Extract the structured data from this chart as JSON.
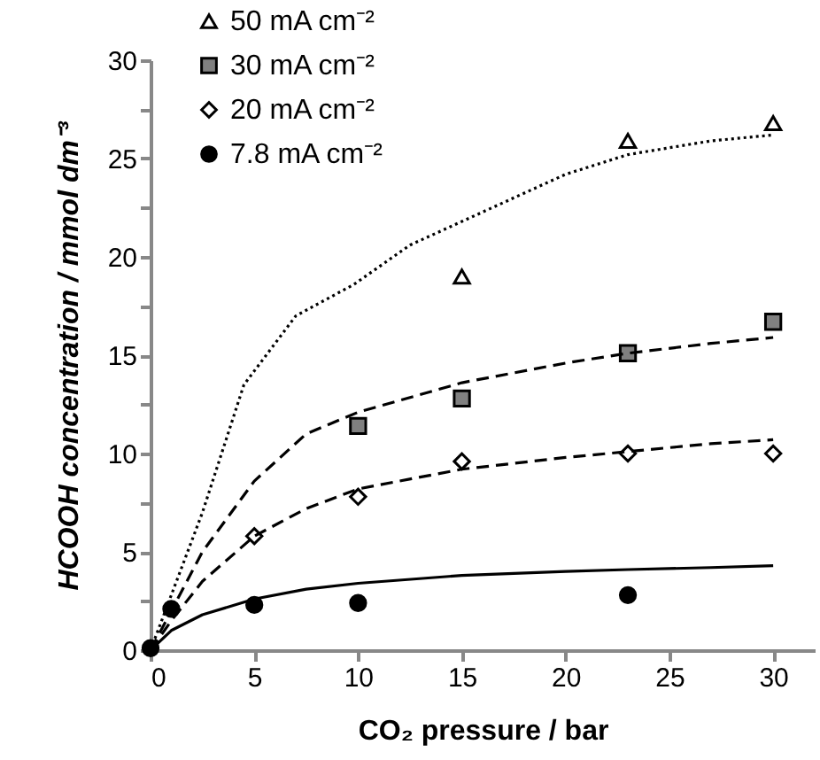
{
  "chart_data": {
    "type": "scatter",
    "xlabel": "CO₂ pressure / bar",
    "ylabel": "HCOOH concentration / mmol dm⁻³",
    "xlim": [
      0,
      32
    ],
    "xticks": [
      0,
      5,
      10,
      15,
      20,
      25,
      30
    ],
    "ylim": [
      0,
      30
    ],
    "yticks": [
      0,
      {
        "value": 2.5,
        "label": null
      },
      5,
      {
        "value": 7.5,
        "label": null
      },
      10,
      {
        "value": 12.5,
        "label": null
      },
      15,
      {
        "value": 17.5,
        "label": null
      },
      20,
      {
        "value": 22.5,
        "label": null
      },
      25,
      {
        "value": 27.5,
        "label": null
      },
      30
    ],
    "grid": false,
    "legend": "top left",
    "series": [
      {
        "name": "50 mA cm⁻²",
        "marker": "triangle",
        "color": "#ffffff",
        "x": [
          15,
          23,
          30
        ],
        "values": [
          19,
          25.9,
          26.8
        ]
      },
      {
        "name": "30 mA cm⁻²",
        "marker": "square",
        "color": "#808080",
        "x": [
          10,
          15,
          23,
          30
        ],
        "values": [
          11.4,
          12.8,
          15.1,
          16.7
        ]
      },
      {
        "name": "20 mA cm⁻²",
        "marker": "diamond",
        "color": "#ffffff",
        "x": [
          5,
          10,
          15,
          23,
          30
        ],
        "values": [
          5.8,
          7.8,
          9.6,
          10,
          10
        ]
      },
      {
        "name": "7.8 mA cm⁻²",
        "marker": "circle",
        "color": "#000000",
        "x": [
          0,
          1,
          5,
          10,
          23
        ],
        "values": [
          0.1,
          2.1,
          2.3,
          2.4,
          2.8
        ]
      },
      {
        "type": "line",
        "line_style": "dotted",
        "color": "#000000",
        "x": [
          0,
          1,
          2.5,
          4.5,
          7,
          9.8,
          12.5,
          15,
          20,
          23,
          27,
          30
        ],
        "values": [
          0,
          2.8,
          7,
          13.5,
          17,
          18.6,
          20.6,
          21.8,
          24.2,
          25.2,
          25.9,
          26.2
        ]
      },
      {
        "type": "line",
        "line_style": "dashed",
        "color": "#000000",
        "x": [
          0,
          1,
          2.5,
          5,
          7.5,
          10,
          15,
          20,
          23,
          27,
          30
        ],
        "values": [
          0,
          2,
          5,
          8.6,
          11,
          12.1,
          13.6,
          14.6,
          15.1,
          15.6,
          15.9
        ]
      },
      {
        "type": "line",
        "line_style": "dashed",
        "color": "#000000",
        "x": [
          0,
          1,
          2.5,
          5,
          7.5,
          10,
          15,
          20,
          23,
          27,
          30
        ],
        "values": [
          0,
          1.5,
          3.5,
          5.8,
          7.2,
          8.2,
          9.2,
          9.8,
          10.1,
          10.5,
          10.7
        ]
      },
      {
        "type": "line",
        "line_style": "solid",
        "color": "#000000",
        "x": [
          0,
          1,
          2.5,
          5,
          7.5,
          10,
          15,
          20,
          23,
          27,
          30
        ],
        "values": [
          0,
          1,
          1.8,
          2.6,
          3.1,
          3.4,
          3.8,
          4,
          4.1,
          4.2,
          4.3
        ]
      }
    ]
  }
}
